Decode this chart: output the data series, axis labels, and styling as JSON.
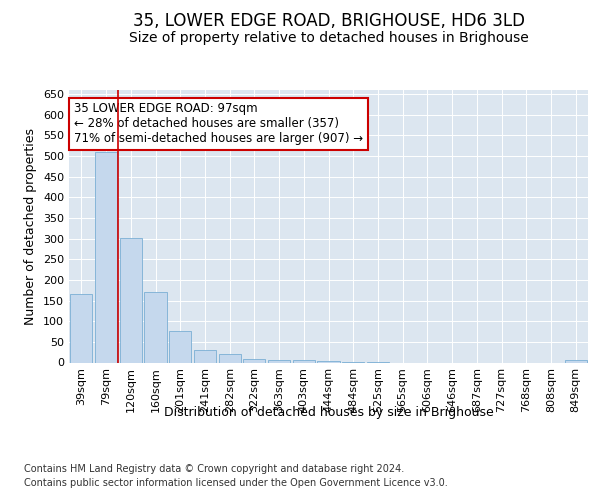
{
  "title": "35, LOWER EDGE ROAD, BRIGHOUSE, HD6 3LD",
  "subtitle": "Size of property relative to detached houses in Brighouse",
  "xlabel": "Distribution of detached houses by size in Brighouse",
  "ylabel": "Number of detached properties",
  "categories": [
    "39sqm",
    "79sqm",
    "120sqm",
    "160sqm",
    "201sqm",
    "241sqm",
    "282sqm",
    "322sqm",
    "363sqm",
    "403sqm",
    "444sqm",
    "484sqm",
    "525sqm",
    "565sqm",
    "606sqm",
    "646sqm",
    "687sqm",
    "727sqm",
    "768sqm",
    "808sqm",
    "849sqm"
  ],
  "values": [
    165,
    510,
    302,
    170,
    77,
    31,
    20,
    8,
    7,
    5,
    3,
    2,
    1,
    0,
    0,
    0,
    0,
    0,
    0,
    0,
    5
  ],
  "bar_color": "#c5d8ed",
  "bar_edgecolor": "#7aafd4",
  "annotation_line1": "35 LOWER EDGE ROAD: 97sqm",
  "annotation_line2": "← 28% of detached houses are smaller (357)",
  "annotation_line3": "71% of semi-detached houses are larger (907) →",
  "annotation_box_color": "#ffffff",
  "annotation_box_edgecolor": "#cc0000",
  "red_line_x": 1.5,
  "footer_line1": "Contains HM Land Registry data © Crown copyright and database right 2024.",
  "footer_line2": "Contains public sector information licensed under the Open Government Licence v3.0.",
  "ylim": [
    0,
    660
  ],
  "yticks": [
    0,
    50,
    100,
    150,
    200,
    250,
    300,
    350,
    400,
    450,
    500,
    550,
    600,
    650
  ],
  "plot_background": "#dce6f0",
  "title_fontsize": 12,
  "subtitle_fontsize": 10,
  "axis_label_fontsize": 9,
  "tick_fontsize": 8,
  "footer_fontsize": 7
}
